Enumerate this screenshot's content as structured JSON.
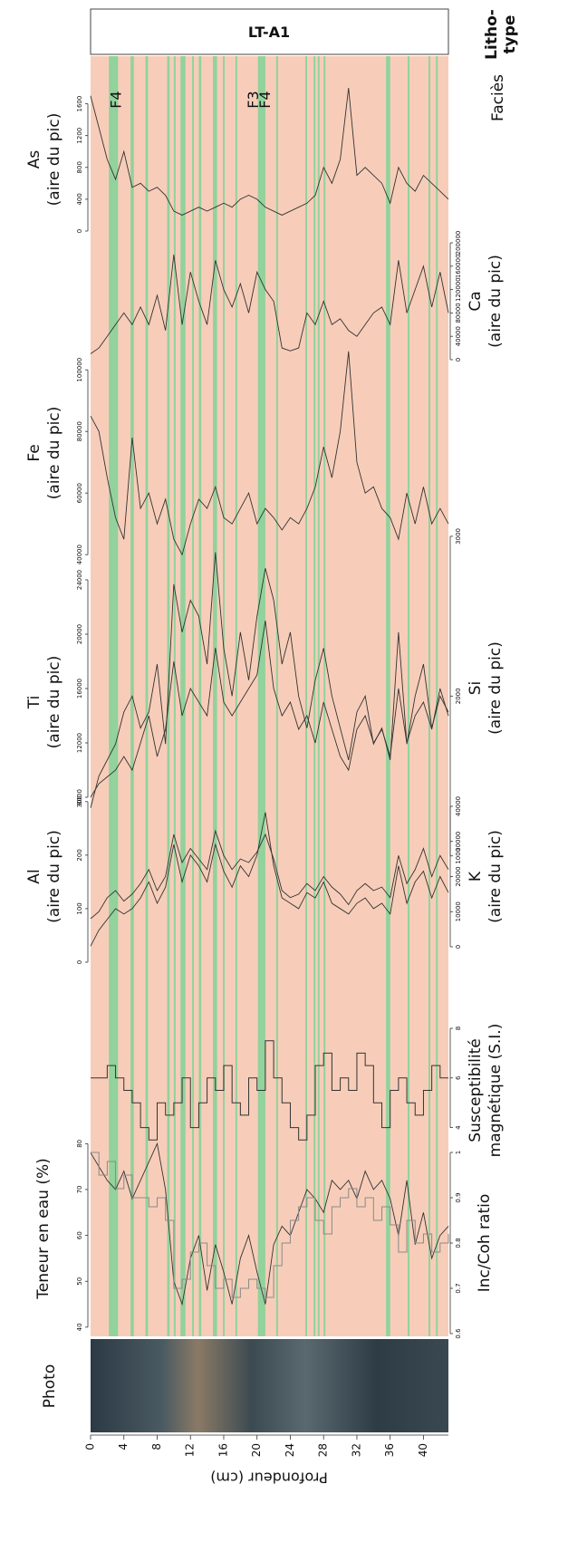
{
  "chart_data": {
    "type": "multi_strip_log",
    "lithotype_title": [
      "Litho-",
      "type"
    ],
    "lithotype": "LT-A1",
    "facies_title": "Faciès",
    "photo_label": "Photo",
    "xlabel": "Profondeur (cm)",
    "xlim": [
      0,
      43
    ],
    "xticks": [
      0,
      4,
      8,
      12,
      16,
      20,
      24,
      28,
      32,
      36,
      40
    ],
    "x": [
      0,
      1,
      2,
      3,
      4,
      5,
      6,
      7,
      8,
      9,
      10,
      11,
      12,
      13,
      14,
      15,
      16,
      17,
      18,
      19,
      20,
      21,
      22,
      23,
      24,
      25,
      26,
      27,
      28,
      29,
      30,
      31,
      32,
      33,
      34,
      35,
      36,
      37,
      38,
      39,
      40,
      41,
      42,
      43
    ],
    "background_color": "#f7cdb9",
    "band_color": "#92d29c",
    "facies_bands": [
      [
        2.2,
        3.3
      ],
      [
        4.8,
        5.2
      ],
      [
        6.6,
        6.9
      ],
      [
        9.2,
        9.5
      ],
      [
        10,
        10.2
      ],
      [
        10.8,
        11.4
      ],
      [
        12.2,
        12.4
      ],
      [
        13,
        13.3
      ],
      [
        14.7,
        15.2
      ],
      [
        15.9,
        16.1
      ],
      [
        17.4,
        17.6
      ],
      [
        20.1,
        21
      ],
      [
        22.3,
        22.5
      ],
      [
        25.8,
        26
      ],
      [
        26.8,
        27
      ],
      [
        27.3,
        27.5
      ],
      [
        28,
        28.2
      ],
      [
        35.5,
        36
      ],
      [
        38.1,
        38.3
      ],
      [
        40.6,
        40.8
      ],
      [
        41.5,
        41.7
      ]
    ],
    "annotations": [
      {
        "text": "F4",
        "x": 3
      },
      {
        "text": "F3",
        "x": 19.5
      },
      {
        "text": "F4",
        "x": 20.9
      }
    ],
    "series": [
      {
        "name": "As",
        "label": [
          "As",
          "(aire du pic)"
        ],
        "side": "left",
        "style": "line",
        "color": "#333333",
        "ylim": [
          0,
          1800
        ],
        "yticks": [
          0,
          400,
          800,
          1200,
          1600
        ],
        "values": [
          1700,
          1300,
          900,
          650,
          1000,
          550,
          600,
          500,
          550,
          450,
          250,
          200,
          250,
          300,
          250,
          300,
          350,
          300,
          400,
          450,
          400,
          300,
          250,
          200,
          250,
          300,
          350,
          450,
          800,
          600,
          900,
          1800,
          700,
          800,
          700,
          600,
          350,
          800,
          600,
          500,
          700,
          600,
          500,
          400
        ]
      },
      {
        "name": "Ca",
        "label": [
          "Ca",
          "(aire du pic)"
        ],
        "side": "right",
        "style": "line",
        "color": "#333333",
        "ylim": [
          0,
          200000
        ],
        "yticks": [
          0,
          40000,
          80000,
          120000,
          160000,
          200000
        ],
        "values": [
          10000,
          20000,
          40000,
          60000,
          80000,
          60000,
          90000,
          60000,
          110000,
          50000,
          180000,
          60000,
          150000,
          100000,
          60000,
          170000,
          120000,
          90000,
          130000,
          80000,
          150000,
          120000,
          100000,
          20000,
          15000,
          20000,
          80000,
          60000,
          100000,
          60000,
          70000,
          50000,
          40000,
          60000,
          80000,
          90000,
          60000,
          170000,
          80000,
          120000,
          160000,
          90000,
          150000,
          80000
        ]
      },
      {
        "name": "Fe",
        "label": [
          "Fe",
          "(aire du pic)"
        ],
        "side": "left",
        "style": "line",
        "color": "#333333",
        "ylim": [
          38000,
          108000
        ],
        "yticks": [
          40000,
          60000,
          80000,
          100000
        ],
        "values": [
          85000,
          80000,
          65000,
          52000,
          45000,
          78000,
          55000,
          60000,
          50000,
          58000,
          45000,
          40000,
          50000,
          58000,
          55000,
          62000,
          52000,
          50000,
          55000,
          60000,
          50000,
          55000,
          52000,
          48000,
          52000,
          50000,
          55000,
          62000,
          75000,
          65000,
          80000,
          106000,
          70000,
          60000,
          62000,
          55000,
          52000,
          45000,
          60000,
          50000,
          62000,
          50000,
          55000,
          50000
        ]
      },
      {
        "name": "Si",
        "label": [
          "Si",
          "(aire du pic)"
        ],
        "side": "right",
        "style": "line",
        "color": "#333333",
        "ylim": [
          800,
          3300
        ],
        "yticks": [
          1000,
          2000,
          3000
        ],
        "values": [
          1300,
          1500,
          1600,
          1700,
          1900,
          2000,
          1800,
          1900,
          2200,
          1700,
          2700,
          2400,
          2600,
          2500,
          2200,
          2900,
          2300,
          2000,
          2400,
          2100,
          2500,
          2800,
          2600,
          2200,
          2400,
          2000,
          1800,
          2100,
          2300,
          2000,
          1800,
          1600,
          1900,
          2000,
          1700,
          1800,
          1600,
          2400,
          1700,
          2000,
          2200,
          1800,
          2000,
          1900
        ]
      },
      {
        "name": "Ti",
        "label": [
          "Ti",
          "(aire du pic)"
        ],
        "side": "left",
        "style": "line",
        "color": "#333333",
        "ylim": [
          6000,
          24000
        ],
        "yticks": [
          8000,
          12000,
          16000,
          20000,
          24000
        ],
        "values": [
          8000,
          9000,
          9500,
          10000,
          11000,
          10000,
          12000,
          14000,
          11000,
          13000,
          18000,
          14000,
          16000,
          15000,
          14000,
          19000,
          15000,
          14000,
          15000,
          16000,
          17000,
          21000,
          16000,
          14000,
          15000,
          13000,
          14000,
          12000,
          15000,
          13000,
          11000,
          10000,
          13000,
          14000,
          12000,
          13000,
          11000,
          16000,
          12000,
          14000,
          15000,
          13000,
          16000,
          14000
        ]
      },
      {
        "name": "K",
        "label": [
          "K",
          "(aire du pic)"
        ],
        "side": "right",
        "style": "line",
        "color": "#333333",
        "ylim": [
          0,
          40000
        ],
        "yticks": [
          0,
          10000,
          20000,
          30000,
          40000
        ],
        "values": [
          8000,
          10000,
          14000,
          16000,
          13000,
          15000,
          18000,
          22000,
          16000,
          20000,
          32000,
          24000,
          28000,
          25000,
          22000,
          33000,
          26000,
          22000,
          25000,
          24000,
          27000,
          32000,
          25000,
          16000,
          14000,
          15000,
          18000,
          16000,
          20000,
          17000,
          15000,
          12000,
          16000,
          18000,
          16000,
          17000,
          14000,
          26000,
          18000,
          22000,
          28000,
          20000,
          26000,
          22000
        ]
      },
      {
        "name": "Al",
        "label": [
          "Al",
          "(aire du pic)"
        ],
        "side": "left",
        "style": "line",
        "color": "#333333",
        "ylim": [
          0,
          320
        ],
        "yticks": [
          0,
          100,
          200,
          300
        ],
        "values": [
          30,
          60,
          80,
          100,
          90,
          100,
          120,
          150,
          110,
          140,
          220,
          150,
          200,
          180,
          150,
          220,
          170,
          140,
          180,
          160,
          200,
          280,
          180,
          120,
          110,
          100,
          130,
          120,
          150,
          110,
          100,
          90,
          110,
          120,
          100,
          110,
          90,
          180,
          110,
          150,
          170,
          120,
          160,
          130
        ]
      },
      {
        "name": "Susceptibilité",
        "label": [
          "Susceptibilité",
          "magnétique (S.I.)"
        ],
        "side": "right",
        "style": "step",
        "color": "#333333",
        "ylim": [
          3,
          8
        ],
        "yticks": [
          4,
          6,
          8
        ],
        "values": [
          6,
          6,
          6.5,
          6,
          5.5,
          5,
          4,
          3.5,
          5,
          4.5,
          5,
          6,
          4,
          5,
          6,
          5.5,
          6.5,
          5,
          4.5,
          6,
          5.5,
          7.5,
          6,
          5,
          4,
          3.5,
          4.5,
          6.5,
          7,
          5.5,
          6,
          5.5,
          7,
          6.5,
          5,
          4,
          5.5,
          6,
          5,
          4.5,
          5.5,
          6.5,
          6,
          6
        ]
      },
      {
        "name": "Teneur en eau",
        "label": [
          "Teneur en eau (%)"
        ],
        "side": "left",
        "style": "line",
        "color": "#333333",
        "ylim": [
          38,
          85
        ],
        "yticks": [
          40,
          50,
          60,
          70,
          80
        ],
        "values": [
          78,
          75,
          72,
          70,
          74,
          68,
          72,
          76,
          80,
          70,
          50,
          45,
          55,
          60,
          48,
          58,
          52,
          45,
          55,
          60,
          52,
          45,
          58,
          62,
          60,
          65,
          70,
          68,
          65,
          72,
          70,
          72,
          68,
          74,
          70,
          72,
          68,
          60,
          72,
          58,
          65,
          55,
          60,
          62
        ]
      },
      {
        "name": "Inc/Coh",
        "label": [
          "Inc/Coh ratio"
        ],
        "side": "right",
        "style": "step",
        "color": "#8a8a8a",
        "ylim": [
          0.58,
          1.02
        ],
        "yticks": [
          0.6,
          0.7,
          0.8,
          0.9,
          1
        ],
        "values": [
          1,
          0.95,
          0.98,
          0.92,
          0.95,
          0.9,
          0.9,
          0.88,
          0.9,
          0.85,
          0.7,
          0.72,
          0.78,
          0.8,
          0.75,
          0.7,
          0.72,
          0.68,
          0.7,
          0.72,
          0.7,
          0.68,
          0.75,
          0.8,
          0.85,
          0.88,
          0.9,
          0.85,
          0.82,
          0.88,
          0.9,
          0.92,
          0.88,
          0.9,
          0.85,
          0.88,
          0.84,
          0.78,
          0.85,
          0.8,
          0.82,
          0.78,
          0.8,
          0.82
        ]
      }
    ]
  }
}
